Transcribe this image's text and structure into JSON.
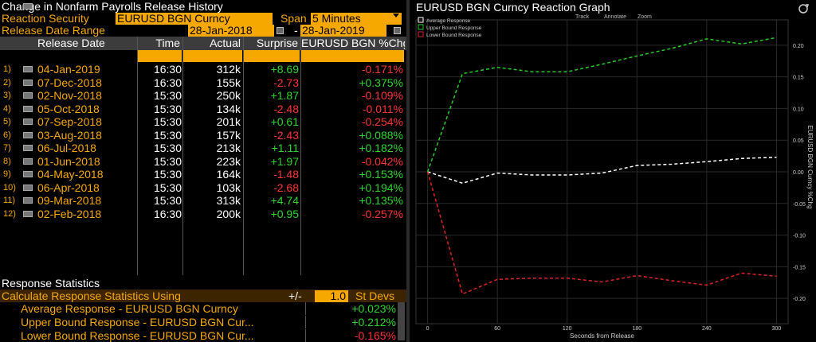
{
  "left": {
    "title": "Change in Nonfarm Payrolls Release History",
    "reaction_security_label": "Reaction Security",
    "reaction_security_value": "EURUSD BGN Curncy",
    "span_label": "Span",
    "span_value": "5 Minutes",
    "date_range_label": "Release Date Range",
    "date_from": "28-Jan-2018",
    "date_sep": "-",
    "date_to": "28-Jan-2019",
    "headers": {
      "release_date": "Release Date",
      "time": "Time",
      "actual": "Actual",
      "surprise": "Surprise",
      "pct": "EURUSD BGN %Chg"
    },
    "rows": [
      {
        "idx": "1)",
        "date": "04-Jan-2019",
        "time": "16:30",
        "actual": "312k",
        "surprise": "+8.69",
        "pct": "-0.171%"
      },
      {
        "idx": "2)",
        "date": "07-Dec-2018",
        "time": "16:30",
        "actual": "155k",
        "surprise": "-2.73",
        "pct": "+0.375%"
      },
      {
        "idx": "3)",
        "date": "02-Nov-2018",
        "time": "15:30",
        "actual": "250k",
        "surprise": "+1.87",
        "pct": "-0.109%"
      },
      {
        "idx": "4)",
        "date": "05-Oct-2018",
        "time": "15:30",
        "actual": "134k",
        "surprise": "-2.48",
        "pct": "-0.011%"
      },
      {
        "idx": "5)",
        "date": "07-Sep-2018",
        "time": "15:30",
        "actual": "201k",
        "surprise": "+0.61",
        "pct": "-0.254%"
      },
      {
        "idx": "6)",
        "date": "03-Aug-2018",
        "time": "15:30",
        "actual": "157k",
        "surprise": "-2.43",
        "pct": "+0.088%"
      },
      {
        "idx": "7)",
        "date": "06-Jul-2018",
        "time": "15:30",
        "actual": "213k",
        "surprise": "+1.11",
        "pct": "+0.182%"
      },
      {
        "idx": "8)",
        "date": "01-Jun-2018",
        "time": "15:30",
        "actual": "223k",
        "surprise": "+1.97",
        "pct": "-0.042%"
      },
      {
        "idx": "9)",
        "date": "04-May-2018",
        "time": "15:30",
        "actual": "164k",
        "surprise": "-1.48",
        "pct": "+0.153%"
      },
      {
        "idx": "10)",
        "date": "06-Apr-2018",
        "time": "15:30",
        "actual": "103k",
        "surprise": "-2.68",
        "pct": "+0.194%"
      },
      {
        "idx": "11)",
        "date": "09-Mar-2018",
        "time": "15:30",
        "actual": "313k",
        "surprise": "+4.74",
        "pct": "+0.135%"
      },
      {
        "idx": "12)",
        "date": "02-Feb-2018",
        "time": "16:30",
        "actual": "200k",
        "surprise": "+0.95",
        "pct": "-0.257%"
      }
    ],
    "stats": {
      "title": "Response Statistics",
      "calc_label": "Calculate Response Statistics Using",
      "pm": "+/-",
      "std_value": "1.0",
      "std_label": "St Devs",
      "items": [
        {
          "label": "Average Response - EURUSD BGN Curncy",
          "value": "+0.023%"
        },
        {
          "label": "Upper Bound Response - EURUSD BGN Cur...",
          "value": "+0.212%"
        },
        {
          "label": "Lower Bound Response - EURUSD BGN Cur...",
          "value": "-0.165%"
        }
      ]
    }
  },
  "right": {
    "title": "EURUSD BGN Curncy Reaction Graph",
    "toolbar": {
      "track": "Track",
      "annotate": "Annotate",
      "zoom": "Zoom"
    },
    "icons": {
      "refresh": "refresh-icon"
    }
  },
  "chart_data": {
    "type": "line",
    "xlabel": "Seconds from Release",
    "ylabel": "EURUSD BGN Curncy %Chg",
    "xlim": [
      -10,
      310
    ],
    "ylim": [
      -0.24,
      0.24
    ],
    "xticks": [
      0,
      60,
      120,
      180,
      240,
      300
    ],
    "yticks": [
      0.2,
      0.15,
      0.1,
      0.05,
      0.0,
      -0.05,
      -0.1,
      -0.15,
      -0.2
    ],
    "ytick_labels": [
      "0.20",
      "0.15",
      "0.10",
      "0.05",
      "0.00",
      "-0.05",
      "-0.10",
      "-0.15",
      "-0.20"
    ],
    "legend_position": "top-left",
    "x": [
      0,
      30,
      60,
      90,
      120,
      150,
      180,
      210,
      240,
      270,
      300
    ],
    "series": [
      {
        "name": "Average Response",
        "color": "#ffffff",
        "values": [
          0.0,
          -0.018,
          -0.002,
          -0.005,
          -0.005,
          -0.002,
          0.01,
          0.012,
          0.016,
          0.021,
          0.023
        ]
      },
      {
        "name": "Upper Bound Response",
        "color": "#22cc22",
        "values": [
          0.0,
          0.155,
          0.165,
          0.158,
          0.158,
          0.17,
          0.183,
          0.195,
          0.21,
          0.202,
          0.212
        ]
      },
      {
        "name": "Lower Bound Response",
        "color": "#dd2222",
        "values": [
          0.0,
          -0.193,
          -0.17,
          -0.168,
          -0.168,
          -0.174,
          -0.164,
          -0.172,
          -0.179,
          -0.16,
          -0.165
        ]
      }
    ],
    "grid": true
  }
}
